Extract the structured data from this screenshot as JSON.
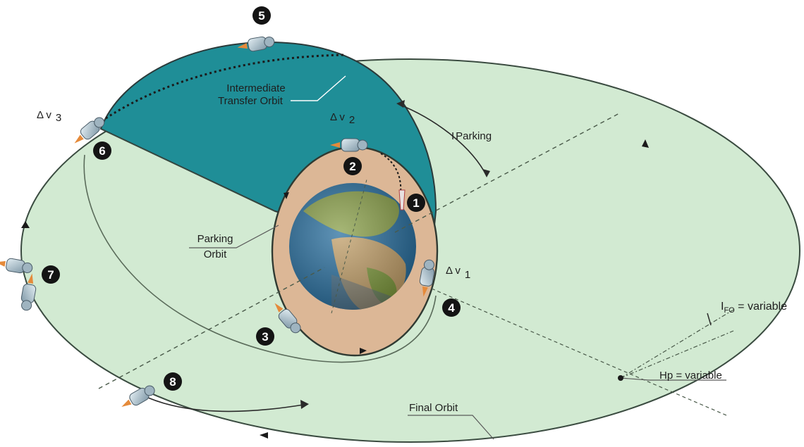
{
  "colors": {
    "final_orbit_fill": "#d2ead2",
    "transfer_orbit_fill": "#1f8e97",
    "parking_orbit_fill": "#dcb796",
    "ocean": "#2a6f9e",
    "land": "#8aa04a",
    "line": "#3a4b40"
  },
  "steps": [
    "1",
    "2",
    "3",
    "4",
    "5",
    "6",
    "7",
    "8"
  ],
  "labels": {
    "intermediate_line1": "Intermediate",
    "intermediate_line2": "Transfer Orbit",
    "parking_line1": "Parking",
    "parking_line2": "Orbit",
    "final_orbit": "Final Orbit",
    "i_parking": "I",
    "i_parking_sub": "Parking",
    "ifo_main": "I",
    "ifo_sub": "FO",
    "ifo_rest": " = variable",
    "hp": "Hp = variable",
    "dv1": "Δ v",
    "dv1_sub": "1",
    "dv2": "Δ v",
    "dv2_sub": "2",
    "dv3": "Δ v",
    "dv3_sub": "3"
  },
  "icons": [
    "spacecraft-icon",
    "launcher-icon",
    "earth-icon"
  ]
}
